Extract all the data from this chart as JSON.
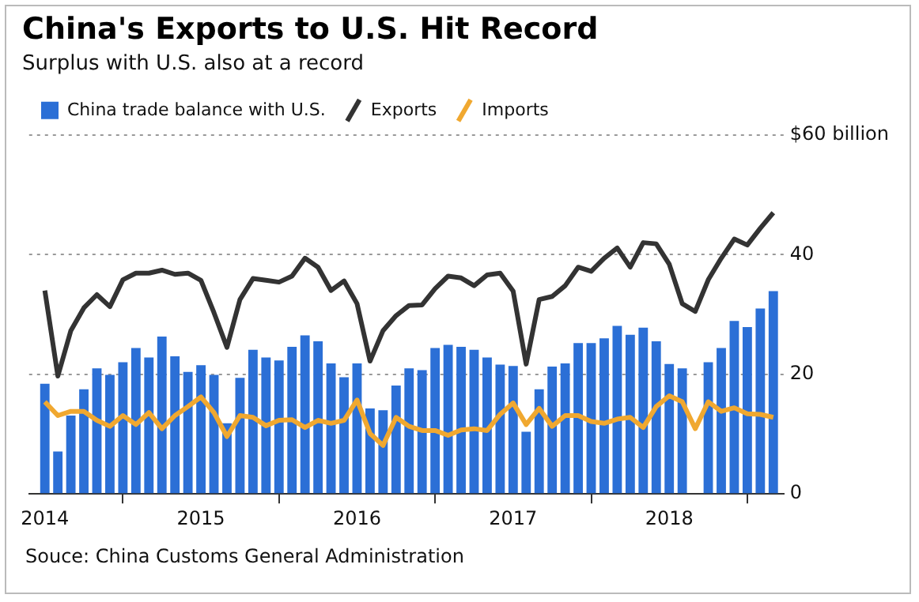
{
  "chart_data": {
    "type": "bar",
    "title": "China's Exports to U.S. Hit Record",
    "subtitle": "Surplus with U.S. also at a record",
    "x": [
      "2014-01",
      "2014-02",
      "2014-03",
      "2014-04",
      "2014-05",
      "2014-06",
      "2014-07",
      "2014-08",
      "2014-09",
      "2014-10",
      "2014-11",
      "2014-12",
      "2015-01",
      "2015-02",
      "2015-03",
      "2015-04",
      "2015-05",
      "2015-06",
      "2015-07",
      "2015-08",
      "2015-09",
      "2015-10",
      "2015-11",
      "2015-12",
      "2016-01",
      "2016-02",
      "2016-03",
      "2016-04",
      "2016-05",
      "2016-06",
      "2016-07",
      "2016-08",
      "2016-09",
      "2016-10",
      "2016-11",
      "2016-12",
      "2017-01",
      "2017-02",
      "2017-03",
      "2017-04",
      "2017-05",
      "2017-06",
      "2017-07",
      "2017-08",
      "2017-09",
      "2017-10",
      "2017-11",
      "2017-12",
      "2018-01",
      "2018-02",
      "2018-03",
      "2018-04",
      "2018-05",
      "2018-06",
      "2018-07",
      "2018-08",
      "2018-09"
    ],
    "series": [
      {
        "name": "China trade balance with U.S.",
        "color": "#2b6fd6",
        "values": [
          18.4,
          7.1,
          13.1,
          17.5,
          21,
          19.9,
          22,
          24.4,
          22.8,
          26.3,
          23,
          20.4,
          21.5,
          19.9,
          11.8,
          19.4,
          24.1,
          22.8,
          22.3,
          24.6,
          26.5,
          25.5,
          21.8,
          19.5,
          21.8,
          14.3,
          14,
          18.1,
          21,
          20.7,
          24.4,
          24.9,
          24.6,
          24.1,
          22.8,
          21.6,
          21.4,
          10.4,
          17.5,
          21.3,
          21.8,
          25.2,
          25.2,
          26,
          28.1,
          26.6,
          27.8,
          25.5,
          21.7,
          21,
          null,
          22,
          24.4,
          28.9,
          27.9,
          31,
          33.9
        ]
      },
      {
        "name": "Exports",
        "type": "line",
        "color": "#333333",
        "values": [
          34,
          19.7,
          27.3,
          31.1,
          33.3,
          31.3,
          35.8,
          36.9,
          36.9,
          37.4,
          36.7,
          36.9,
          35.7,
          30.3,
          24.5,
          32.5,
          36,
          35.7,
          35.4,
          36.4,
          39.4,
          37.9,
          34,
          35.6,
          31.8,
          22.2,
          27.3,
          29.8,
          31.5,
          31.6,
          34.3,
          36.4,
          36.1,
          34.8,
          36.6,
          36.9,
          33.9,
          21.7,
          32.5,
          33,
          34.8,
          37.9,
          37.2,
          39.4,
          41.1,
          37.9,
          42,
          41.8,
          38.4,
          31.8,
          30.5,
          35.8,
          39.4,
          42.6,
          41.6,
          44.4,
          47
        ]
      },
      {
        "name": "Imports",
        "type": "line",
        "color": "#f0a830",
        "values": [
          15.4,
          13.1,
          13.8,
          13.8,
          12.3,
          11.3,
          13.1,
          11.6,
          13.6,
          10.9,
          13.1,
          14.6,
          16.2,
          13.6,
          9.6,
          13.1,
          12.8,
          11.4,
          12.3,
          12.4,
          11.1,
          12.3,
          11.8,
          12.3,
          15.7,
          10.1,
          8.1,
          12.8,
          11.3,
          10.6,
          10.6,
          9.8,
          10.7,
          10.9,
          10.6,
          13.3,
          15.2,
          11.6,
          14.3,
          11.3,
          13.1,
          13.1,
          12.1,
          11.8,
          12.5,
          12.8,
          11.1,
          14.6,
          16.4,
          15.4,
          10.9,
          15.4,
          13.8,
          14.4,
          13.4,
          13.3,
          12.8
        ]
      }
    ],
    "xlim": [
      "2013-11-25",
      "2018-09-25"
    ],
    "xticks": [
      "2014",
      "2015",
      "2016",
      "2017",
      "2018"
    ],
    "ylim": [
      0,
      60
    ],
    "yticks": [
      0,
      20,
      40,
      {
        "value": 60,
        "label": "$60 billion"
      }
    ],
    "grid": "y",
    "legend": "top left",
    "marker": "none",
    "line_style": "solid",
    "annotations": [
      "Souce: China Customs General Administration"
    ]
  }
}
